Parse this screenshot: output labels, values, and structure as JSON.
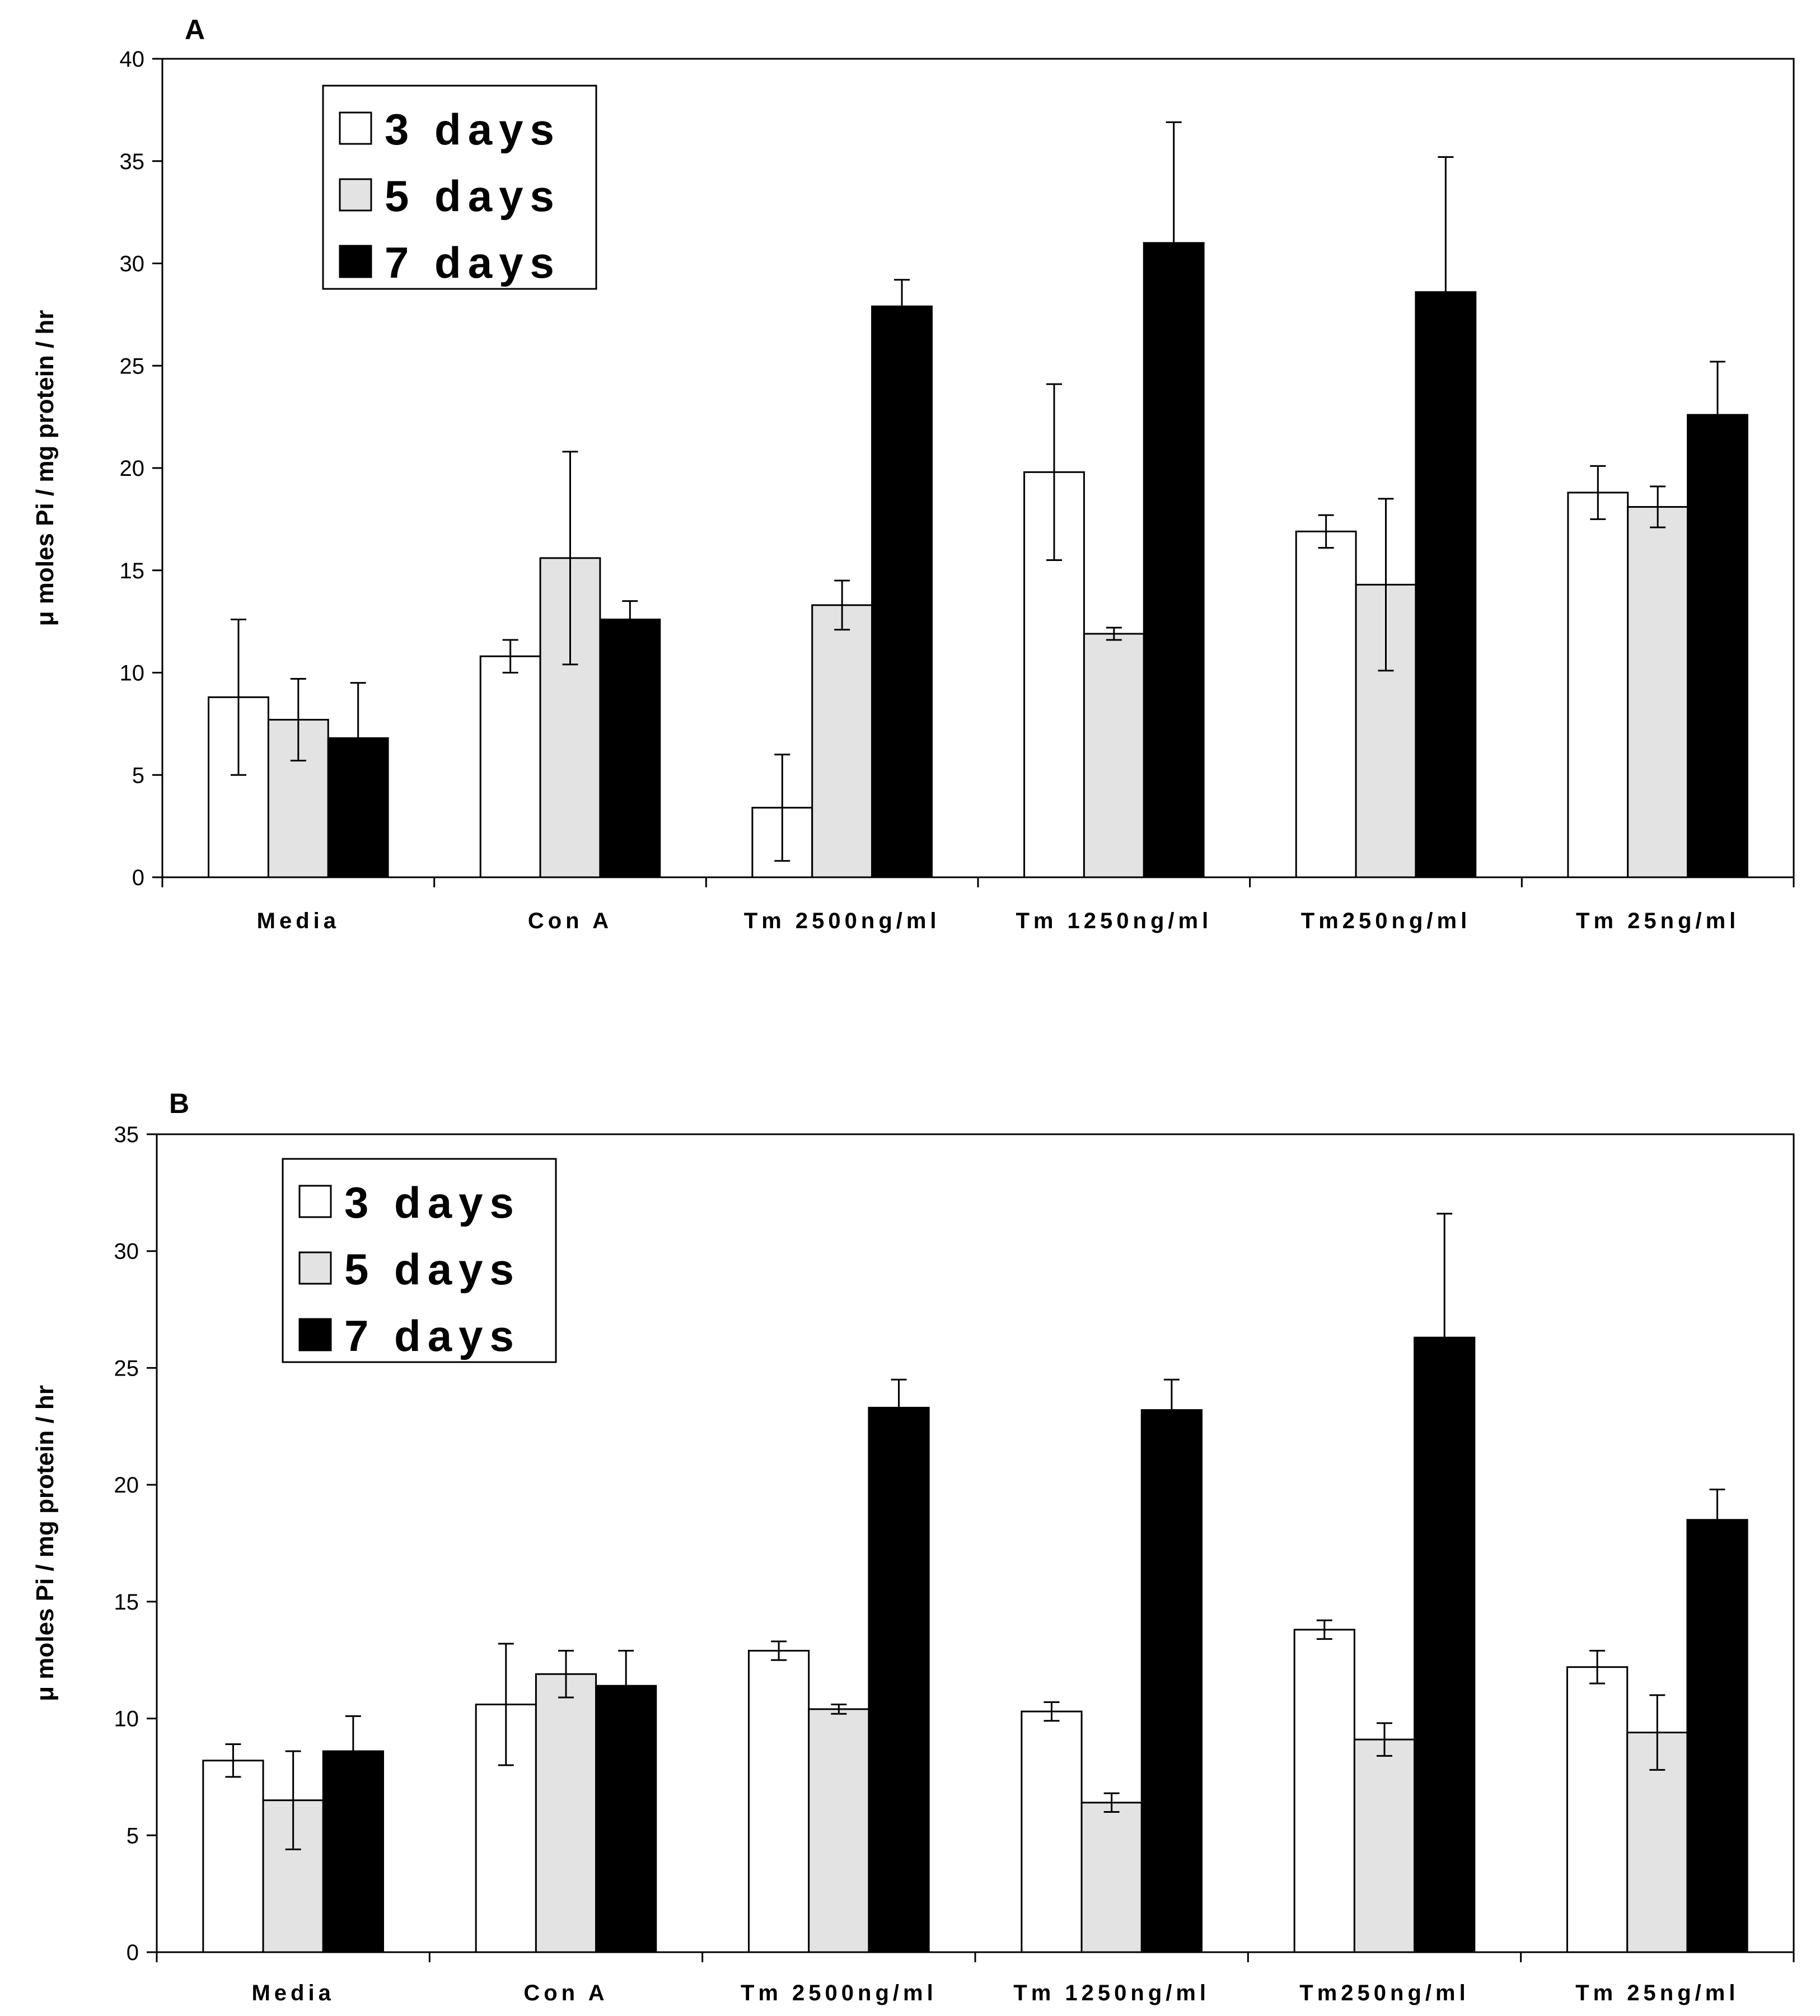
{
  "colors": {
    "3 days": "#ffffff",
    "5 days": "#e3e3e3",
    "7 days": "#000000",
    "axis": "#000000"
  },
  "chart_data": [
    {
      "panel": "A",
      "type": "bar",
      "ylabel": "μ moles Pi / mg protein / hr",
      "ylim": [
        0,
        40
      ],
      "yticks": [
        0,
        5,
        10,
        15,
        20,
        25,
        30,
        35,
        40
      ],
      "categories": [
        "Media",
        "Con A",
        "Tm 2500ng/ml",
        "Tm 1250ng/ml",
        "Tm250ng/ml",
        "Tm 25ng/ml"
      ],
      "legend_position": "top-left",
      "series": [
        {
          "name": "3 days",
          "values": [
            8.8,
            10.8,
            3.4,
            19.8,
            16.9,
            18.8
          ],
          "errors": [
            3.8,
            0.8,
            2.6,
            4.3,
            0.8,
            1.3
          ]
        },
        {
          "name": "5 days",
          "values": [
            7.7,
            15.6,
            13.3,
            11.9,
            14.3,
            18.1
          ],
          "errors": [
            2.0,
            5.2,
            1.2,
            0.3,
            4.2,
            1.0
          ]
        },
        {
          "name": "7 days",
          "values": [
            6.8,
            12.6,
            27.9,
            31.0,
            28.6,
            22.6
          ],
          "errors": [
            2.7,
            0.9,
            1.3,
            5.9,
            6.6,
            2.6
          ]
        }
      ]
    },
    {
      "panel": "B",
      "type": "bar",
      "ylabel": "μ moles Pi / mg protein / hr",
      "ylim": [
        0,
        35
      ],
      "yticks": [
        0,
        5,
        10,
        15,
        20,
        25,
        30,
        35
      ],
      "categories": [
        "Media",
        "Con A",
        "Tm 2500ng/ml",
        "Tm 1250ng/ml",
        "Tm250ng/ml",
        "Tm 25ng/ml"
      ],
      "legend_position": "top-left",
      "series": [
        {
          "name": "3 days",
          "values": [
            8.2,
            10.6,
            12.9,
            10.3,
            13.8,
            12.2
          ],
          "errors": [
            0.7,
            2.6,
            0.4,
            0.4,
            0.4,
            0.7
          ]
        },
        {
          "name": "5 days",
          "values": [
            6.5,
            11.9,
            10.4,
            6.4,
            9.1,
            9.4
          ],
          "errors": [
            2.1,
            1.0,
            0.2,
            0.4,
            0.7,
            1.6
          ]
        },
        {
          "name": "7 days",
          "values": [
            8.6,
            11.4,
            23.3,
            23.2,
            26.3,
            18.5
          ],
          "errors": [
            1.5,
            1.5,
            1.2,
            1.3,
            5.3,
            1.3
          ]
        }
      ]
    }
  ]
}
